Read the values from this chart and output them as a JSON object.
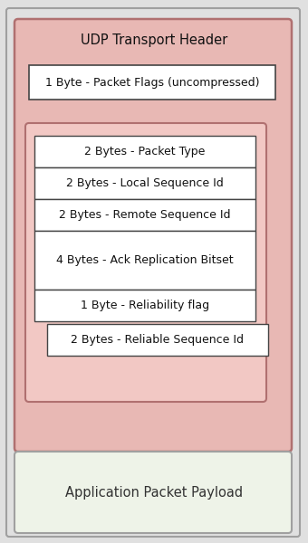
{
  "title": "UDP Transport Header",
  "outer_bg": "#e0e0e0",
  "outer_border": "#a0a0a0",
  "header_bg": "#e8b8b4",
  "header_border": "#b07070",
  "inner_bg": "#f2c8c4",
  "inner_border": "#b07070",
  "box_bg": "#ffffff",
  "box_border": "#444444",
  "payload_bg": "#eef3e8",
  "payload_border": "#a0a0a0",
  "fields_top": [
    "1 Byte - Packet Flags (uncompressed)"
  ],
  "fields_inner": [
    "2 Bytes - Packet Type",
    "2 Bytes - Local Sequence Id",
    "2 Bytes - Remote Sequence Id",
    "4 Bytes - Ack Replication Bitset",
    "1 Byte - Reliability flag"
  ],
  "field_reliable": "2 Bytes - Reliable Sequence Id",
  "payload_label": "Application Packet Payload",
  "figsize": [
    3.4,
    6.0
  ],
  "dpi": 100
}
